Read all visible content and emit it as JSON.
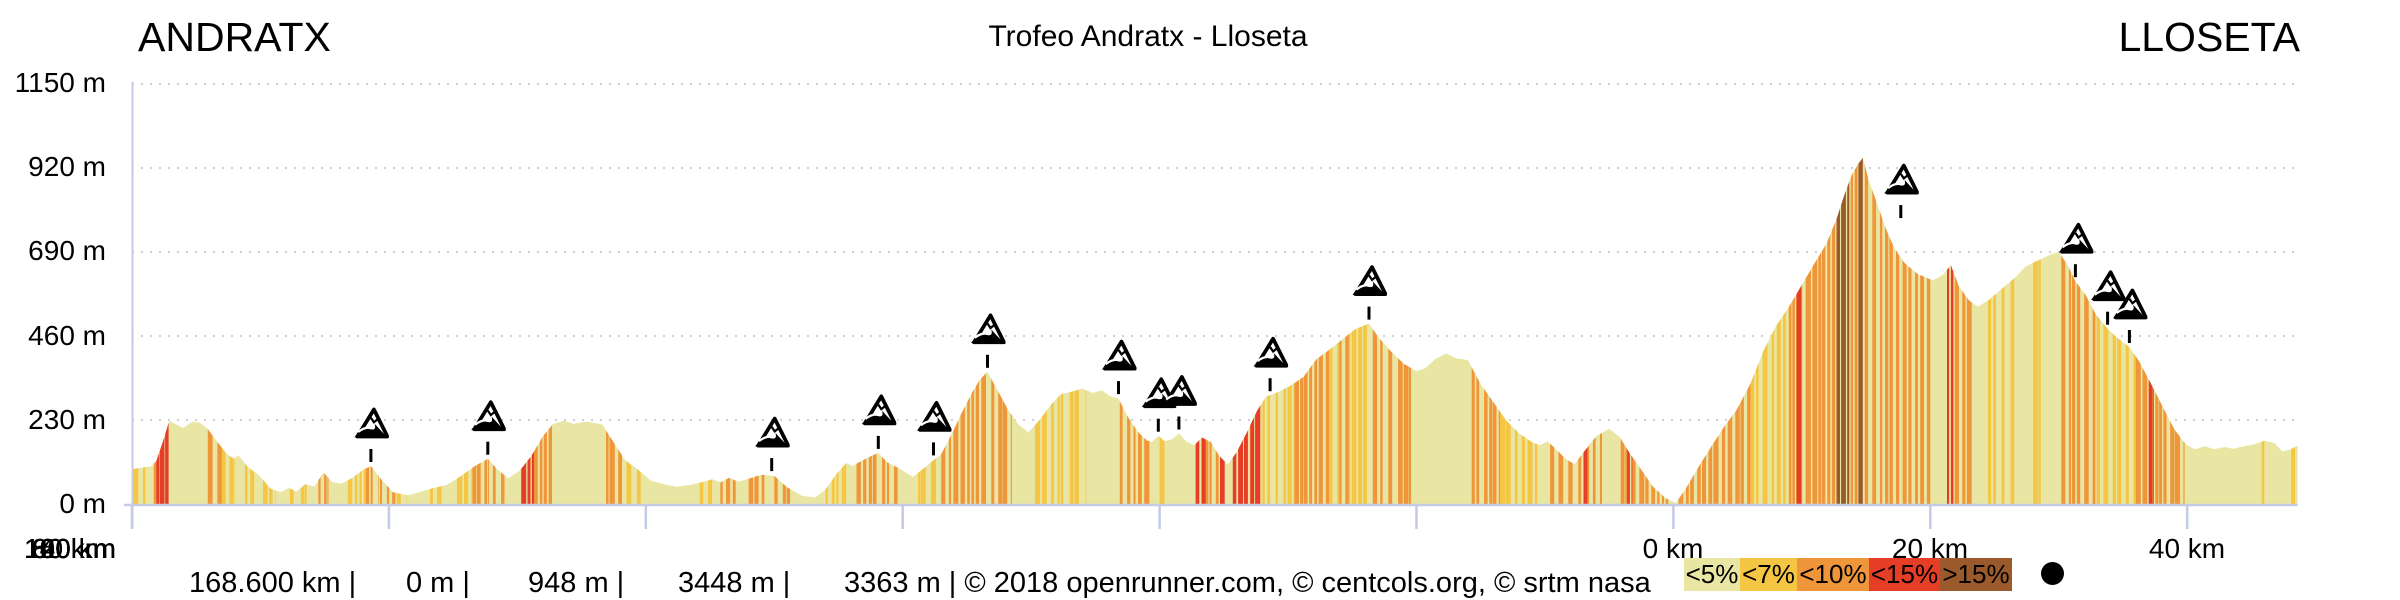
{
  "header": {
    "start_label": "ANDRATX",
    "title": "Trofeo Andratx - Lloseta",
    "end_label": "LLOSETA"
  },
  "y_axis": {
    "labels": [
      "1150 m",
      "920 m",
      "690 m",
      "460 m",
      "230 m",
      "0 m"
    ]
  },
  "x_axis": {
    "labels": [
      "0 km",
      "20 km",
      "40 km",
      "60 km",
      "80 km",
      "100 km",
      "120 km",
      "140 km",
      "160 km"
    ]
  },
  "footer": {
    "distance": "168.600 km |",
    "min_elevation": "0 m |",
    "max_elevation": "948 m |",
    "ascent": "3448 m |",
    "descent": "3363 m | © 2018 openrunner.com, © centcols.org, © srtm nasa"
  },
  "legend": {
    "entries": [
      {
        "label": "<5%",
        "color": "#e9e6a4"
      },
      {
        "label": "<7%",
        "color": "#f4c644"
      },
      {
        "label": "<10%",
        "color": "#f0963a"
      },
      {
        "label": "<15%",
        "color": "#e63d26"
      },
      {
        "label": ">15%",
        "color": "#9b5a2b"
      }
    ],
    "summit_dot_color": "#000000"
  },
  "chart_data": {
    "type": "area",
    "title": "Trofeo Andratx - Lloseta",
    "xlabel": "distance (km)",
    "ylabel": "elevation (m)",
    "xlim": [
      0,
      168.6
    ],
    "ylim": [
      0,
      1260
    ],
    "x_ticks_km": [
      0,
      20,
      40,
      60,
      80,
      100,
      120,
      140,
      160
    ],
    "y_ticks_m": [
      0,
      230,
      460,
      690,
      920,
      1150
    ],
    "stats": {
      "total_distance_km": 168.6,
      "min_elevation_m": 0,
      "max_elevation_m": 948,
      "total_ascent_m": 3448,
      "total_descent_m": 3363
    },
    "grade_colors": {
      "<5%": "#e9e6a4",
      "<7%": "#f4c644",
      "<10%": "#f0963a",
      "<15%": "#e63d26",
      ">15%": "#9b5a2b"
    },
    "axis_color": "#c3cbe5",
    "grid_color": "#cfcfcf",
    "profile": [
      [
        0,
        95
      ],
      [
        0.8,
        100
      ],
      [
        1.5,
        103
      ],
      [
        1.9,
        118
      ],
      [
        2.4,
        170
      ],
      [
        2.9,
        228
      ],
      [
        3.4,
        218
      ],
      [
        4.0,
        208
      ],
      [
        4.7,
        226
      ],
      [
        5.3,
        222
      ],
      [
        5.9,
        205
      ],
      [
        6.6,
        172
      ],
      [
        7.3,
        140
      ],
      [
        7.9,
        124
      ],
      [
        8.3,
        133
      ],
      [
        9.0,
        102
      ],
      [
        9.9,
        78
      ],
      [
        10.8,
        42
      ],
      [
        11.6,
        32
      ],
      [
        12.2,
        44
      ],
      [
        12.8,
        34
      ],
      [
        13.5,
        54
      ],
      [
        14.2,
        48
      ],
      [
        14.9,
        86
      ],
      [
        15.6,
        60
      ],
      [
        16.3,
        56
      ],
      [
        17.1,
        70
      ],
      [
        18.0,
        94
      ],
      [
        18.6,
        104
      ],
      [
        19.3,
        72
      ],
      [
        20.3,
        32
      ],
      [
        21.5,
        24
      ],
      [
        22.5,
        34
      ],
      [
        23.5,
        44
      ],
      [
        24.5,
        52
      ],
      [
        25.5,
        74
      ],
      [
        26.7,
        104
      ],
      [
        27.7,
        124
      ],
      [
        28.4,
        96
      ],
      [
        29.3,
        70
      ],
      [
        30.2,
        92
      ],
      [
        31.1,
        132
      ],
      [
        32.0,
        186
      ],
      [
        32.8,
        220
      ],
      [
        33.6,
        228
      ],
      [
        34.4,
        220
      ],
      [
        35.4,
        226
      ],
      [
        36.6,
        218
      ],
      [
        37.4,
        174
      ],
      [
        38.4,
        120
      ],
      [
        39.4,
        94
      ],
      [
        40.4,
        64
      ],
      [
        41.4,
        54
      ],
      [
        42.4,
        47
      ],
      [
        43.4,
        52
      ],
      [
        44.4,
        60
      ],
      [
        45.2,
        68
      ],
      [
        45.8,
        59
      ],
      [
        46.5,
        72
      ],
      [
        47.2,
        61
      ],
      [
        48.1,
        70
      ],
      [
        49.0,
        80
      ],
      [
        50.0,
        77
      ],
      [
        51.0,
        46
      ],
      [
        52.2,
        22
      ],
      [
        53.2,
        18
      ],
      [
        54.0,
        40
      ],
      [
        54.8,
        80
      ],
      [
        55.6,
        112
      ],
      [
        56.1,
        104
      ],
      [
        56.8,
        118
      ],
      [
        57.6,
        132
      ],
      [
        58.1,
        140
      ],
      [
        58.8,
        114
      ],
      [
        59.6,
        100
      ],
      [
        60.3,
        85
      ],
      [
        60.8,
        74
      ],
      [
        61.5,
        94
      ],
      [
        62.4,
        120
      ],
      [
        63.0,
        136
      ],
      [
        63.8,
        190
      ],
      [
        64.6,
        250
      ],
      [
        65.4,
        305
      ],
      [
        66.0,
        340
      ],
      [
        66.6,
        362
      ],
      [
        67.4,
        310
      ],
      [
        68.2,
        258
      ],
      [
        69.0,
        218
      ],
      [
        69.8,
        196
      ],
      [
        70.7,
        232
      ],
      [
        71.5,
        270
      ],
      [
        72.3,
        300
      ],
      [
        73.2,
        308
      ],
      [
        74.0,
        316
      ],
      [
        74.8,
        304
      ],
      [
        75.5,
        312
      ],
      [
        76.1,
        296
      ],
      [
        76.8,
        288
      ],
      [
        77.5,
        240
      ],
      [
        78.3,
        198
      ],
      [
        79.0,
        174
      ],
      [
        79.4,
        170
      ],
      [
        79.9,
        187
      ],
      [
        80.4,
        172
      ],
      [
        81.0,
        178
      ],
      [
        81.5,
        193
      ],
      [
        82.1,
        170
      ],
      [
        82.7,
        161
      ],
      [
        83.3,
        182
      ],
      [
        84.0,
        169
      ],
      [
        84.6,
        134
      ],
      [
        85.3,
        108
      ],
      [
        86.0,
        142
      ],
      [
        86.8,
        196
      ],
      [
        87.6,
        256
      ],
      [
        88.3,
        294
      ],
      [
        89.2,
        306
      ],
      [
        90.2,
        324
      ],
      [
        91.2,
        348
      ],
      [
        92.2,
        396
      ],
      [
        93.2,
        422
      ],
      [
        94.2,
        450
      ],
      [
        95.2,
        478
      ],
      [
        96.3,
        494
      ],
      [
        97.1,
        454
      ],
      [
        98.0,
        418
      ],
      [
        99.0,
        384
      ],
      [
        100.0,
        364
      ],
      [
        100.7,
        372
      ],
      [
        101.5,
        398
      ],
      [
        102.3,
        412
      ],
      [
        103.1,
        399
      ],
      [
        104.0,
        394
      ],
      [
        105.0,
        328
      ],
      [
        106.0,
        278
      ],
      [
        107.0,
        228
      ],
      [
        108.0,
        193
      ],
      [
        109.0,
        169
      ],
      [
        109.6,
        161
      ],
      [
        110.2,
        172
      ],
      [
        110.9,
        149
      ],
      [
        111.6,
        124
      ],
      [
        112.3,
        109
      ],
      [
        113.1,
        146
      ],
      [
        114.0,
        186
      ],
      [
        115.0,
        206
      ],
      [
        115.8,
        184
      ],
      [
        116.6,
        139
      ],
      [
        117.5,
        94
      ],
      [
        118.4,
        48
      ],
      [
        119.4,
        16
      ],
      [
        120.2,
        3
      ],
      [
        121.0,
        44
      ],
      [
        122.0,
        104
      ],
      [
        123.0,
        160
      ],
      [
        124.0,
        214
      ],
      [
        124.9,
        256
      ],
      [
        126.0,
        330
      ],
      [
        127.0,
        418
      ],
      [
        128.0,
        488
      ],
      [
        129.0,
        540
      ],
      [
        130.0,
        600
      ],
      [
        131.0,
        660
      ],
      [
        131.9,
        712
      ],
      [
        132.7,
        780
      ],
      [
        133.3,
        845
      ],
      [
        133.9,
        902
      ],
      [
        134.4,
        932
      ],
      [
        134.75,
        948
      ],
      [
        135.2,
        888
      ],
      [
        135.8,
        828
      ],
      [
        136.5,
        758
      ],
      [
        137.2,
        700
      ],
      [
        138.0,
        660
      ],
      [
        139.0,
        630
      ],
      [
        140.2,
        612
      ],
      [
        141.0,
        628
      ],
      [
        141.6,
        654
      ],
      [
        142.2,
        598
      ],
      [
        143.0,
        558
      ],
      [
        143.7,
        540
      ],
      [
        144.6,
        560
      ],
      [
        145.6,
        590
      ],
      [
        146.6,
        620
      ],
      [
        147.4,
        650
      ],
      [
        148.1,
        662
      ],
      [
        148.7,
        672
      ],
      [
        149.4,
        684
      ],
      [
        150.0,
        690
      ],
      [
        150.7,
        654
      ],
      [
        151.3,
        610
      ],
      [
        152.1,
        572
      ],
      [
        152.9,
        518
      ],
      [
        153.8,
        480
      ],
      [
        154.6,
        454
      ],
      [
        155.5,
        430
      ],
      [
        156.3,
        388
      ],
      [
        157.2,
        328
      ],
      [
        158.1,
        266
      ],
      [
        159.0,
        204
      ],
      [
        159.9,
        163
      ],
      [
        160.6,
        150
      ],
      [
        161.4,
        158
      ],
      [
        162.1,
        150
      ],
      [
        162.9,
        156
      ],
      [
        163.6,
        151
      ],
      [
        164.4,
        158
      ],
      [
        165.2,
        163
      ],
      [
        166.0,
        173
      ],
      [
        166.8,
        167
      ],
      [
        167.4,
        144
      ],
      [
        168.0,
        149
      ],
      [
        168.6,
        160
      ]
    ],
    "gradient_segments": [
      [
        0.1,
        1.3,
        "<7%",
        0.25
      ],
      [
        1.7,
        1.95,
        "<10%",
        0.8
      ],
      [
        1.9,
        2.9,
        "<15%",
        0.9
      ],
      [
        5.9,
        7.0,
        "<10%",
        0.5
      ],
      [
        7.0,
        8.0,
        "<7%",
        0.45
      ],
      [
        8.8,
        9.6,
        "<7%",
        0.4
      ],
      [
        10.2,
        11.2,
        "<7%",
        0.35
      ],
      [
        12.3,
        13.6,
        "<7%",
        0.25
      ],
      [
        14.5,
        15.3,
        "<10%",
        0.55
      ],
      [
        16.8,
        18.2,
        "<7%",
        0.5
      ],
      [
        18.2,
        19.2,
        "<10%",
        0.5
      ],
      [
        19.3,
        20.5,
        "<10%",
        0.55
      ],
      [
        20.6,
        21.4,
        "<7%",
        0.3
      ],
      [
        23.2,
        24.2,
        "<7%",
        0.3
      ],
      [
        25.3,
        26.5,
        "<7%",
        0.5
      ],
      [
        26.5,
        27.8,
        "<10%",
        0.55
      ],
      [
        28.1,
        29.2,
        "<10%",
        0.4
      ],
      [
        30.3,
        31.3,
        "<15%",
        0.85
      ],
      [
        31.3,
        32.7,
        "<10%",
        0.6
      ],
      [
        36.9,
        38.5,
        "<10%",
        0.55
      ],
      [
        38.5,
        39.6,
        "<7%",
        0.4
      ],
      [
        44.2,
        45.2,
        "<7%",
        0.35
      ],
      [
        45.8,
        47.0,
        "<10%",
        0.3
      ],
      [
        48.0,
        49.3,
        "<10%",
        0.5
      ],
      [
        50.0,
        51.6,
        "<10%",
        0.5
      ],
      [
        54.0,
        55.6,
        "<7%",
        0.5
      ],
      [
        56.4,
        58.1,
        "<10%",
        0.6
      ],
      [
        58.4,
        59.6,
        "<10%",
        0.45
      ],
      [
        61.2,
        62.6,
        "<7%",
        0.5
      ],
      [
        63.0,
        66.6,
        "<10%",
        0.6
      ],
      [
        66.9,
        68.5,
        "<10%",
        0.35
      ],
      [
        70.3,
        72.5,
        "<7%",
        0.5
      ],
      [
        73.0,
        74.3,
        "<7%",
        0.3
      ],
      [
        76.9,
        79.3,
        "<10%",
        0.5
      ],
      [
        80.0,
        80.6,
        "<7%",
        0.4
      ],
      [
        82.8,
        83.6,
        "<15%",
        0.5
      ],
      [
        83.6,
        84.6,
        "<10%",
        0.5
      ],
      [
        84.7,
        85.4,
        "<15%",
        0.55
      ],
      [
        85.7,
        87.9,
        "<15%",
        0.8
      ],
      [
        88.0,
        90.5,
        "<7%",
        0.45
      ],
      [
        90.5,
        93.2,
        "<10%",
        0.6
      ],
      [
        93.2,
        96.3,
        "<7%",
        0.55
      ],
      [
        94.0,
        95.0,
        "<10%",
        0.5
      ],
      [
        96.6,
        99.9,
        "<10%",
        0.45
      ],
      [
        104.3,
        106.5,
        "<10%",
        0.55
      ],
      [
        106.5,
        109.4,
        "<7%",
        0.45
      ],
      [
        110.4,
        112.3,
        "<10%",
        0.5
      ],
      [
        112.6,
        114.6,
        "<10%",
        0.55
      ],
      [
        113.0,
        113.3,
        "<15%",
        0.9
      ],
      [
        115.9,
        119.6,
        "<10%",
        0.55
      ],
      [
        116.4,
        116.8,
        "<15%",
        0.8
      ],
      [
        120.4,
        126.0,
        "<10%",
        0.65
      ],
      [
        126.0,
        129.0,
        "<7%",
        0.6
      ],
      [
        129.0,
        132.6,
        "<10%",
        0.7
      ],
      [
        129.6,
        130.0,
        "<15%",
        0.7
      ],
      [
        132.7,
        133.7,
        ">15%",
        0.9
      ],
      [
        133.8,
        134.4,
        "<10%",
        0.7
      ],
      [
        134.4,
        134.75,
        ">15%",
        0.85
      ],
      [
        134.9,
        140.0,
        "<10%",
        0.6
      ],
      [
        141.3,
        141.8,
        "<15%",
        0.8
      ],
      [
        141.9,
        143.5,
        "<10%",
        0.4
      ],
      [
        144.5,
        147.0,
        "<7%",
        0.35
      ],
      [
        148.0,
        148.6,
        "<7%",
        0.3
      ],
      [
        150.2,
        153.0,
        "<10%",
        0.6
      ],
      [
        153.0,
        156.0,
        "<7%",
        0.5
      ],
      [
        156.0,
        159.8,
        "<10%",
        0.6
      ],
      [
        157.0,
        157.4,
        "<15%",
        0.7
      ],
      [
        165.8,
        166.2,
        "<7%",
        0.6
      ],
      [
        168.1,
        168.4,
        "<7%",
        0.7
      ]
    ],
    "climb_markers": [
      {
        "km": 18.6,
        "m": 104
      },
      {
        "km": 27.7,
        "m": 124
      },
      {
        "km": 49.8,
        "m": 79
      },
      {
        "km": 58.1,
        "m": 140
      },
      {
        "km": 62.4,
        "m": 122
      },
      {
        "km": 66.6,
        "m": 362
      },
      {
        "km": 76.8,
        "m": 290
      },
      {
        "km": 79.9,
        "m": 187
      },
      {
        "km": 81.5,
        "m": 193
      },
      {
        "km": 88.6,
        "m": 298
      },
      {
        "km": 96.3,
        "m": 494
      },
      {
        "km": 137.7,
        "m": 772
      },
      {
        "km": 151.3,
        "m": 610
      },
      {
        "km": 153.8,
        "m": 480
      },
      {
        "km": 155.5,
        "m": 430
      }
    ]
  }
}
